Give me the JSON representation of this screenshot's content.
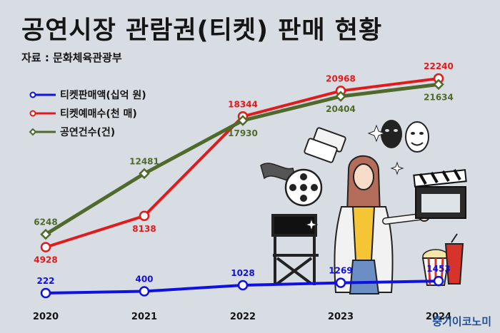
{
  "title": "공연시장 관람권(티켓) 판매 현황",
  "source": "자료 : 문화체육관광부",
  "watermark": "중기이코노미",
  "chart_data": {
    "type": "line",
    "categories": [
      "2020",
      "2021",
      "2022",
      "2023",
      "2024"
    ],
    "series": [
      {
        "name": "티켓판매액(십억 원)",
        "values": [
          222,
          400,
          1028,
          1269,
          1453
        ],
        "color": "#1010e0",
        "marker": "circle"
      },
      {
        "name": "티켓예매수(천 매)",
        "values": [
          4928,
          8138,
          18344,
          20968,
          22240
        ],
        "color": "#e01b1b",
        "marker": "circle"
      },
      {
        "name": "공연건수(건)",
        "values": [
          6248,
          12481,
          17930,
          20404,
          21634
        ],
        "color": "#4f6a2a",
        "marker": "diamond"
      }
    ],
    "ylim": [
      0,
      24000
    ],
    "grid": false,
    "legend": "top-left",
    "illustration": "woman-with-theater-props-illustration"
  }
}
